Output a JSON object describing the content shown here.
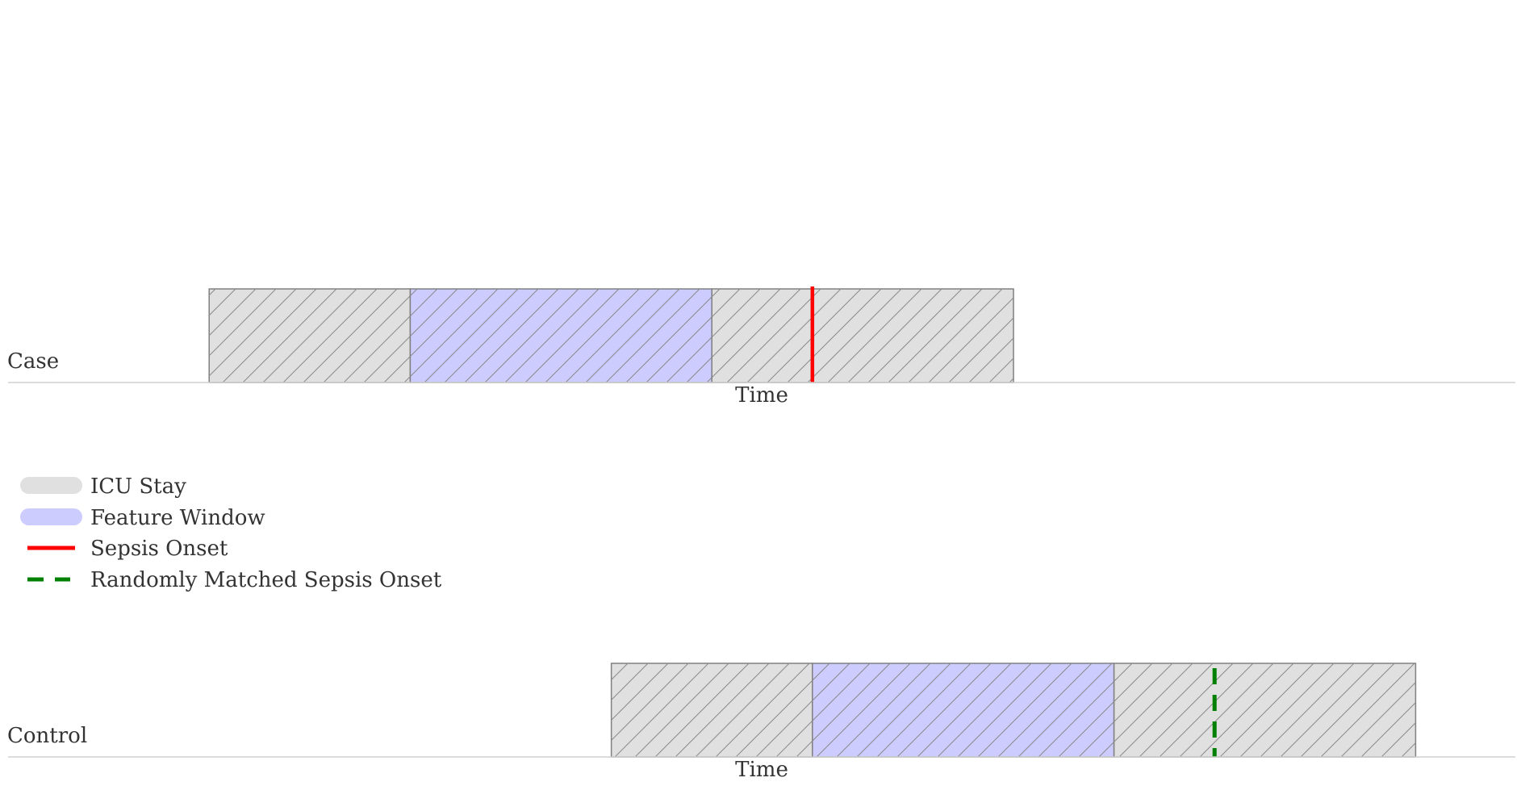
{
  "rows": [
    {
      "label": "Case",
      "axis_label": "Time",
      "icu_stay": [
        2,
        10
      ],
      "feature_window": [
        4,
        7
      ],
      "onset": 8,
      "onset_kind": "sepsis"
    },
    {
      "label": "Control",
      "axis_label": "Time",
      "icu_stay": [
        6,
        14
      ],
      "feature_window": [
        8,
        11
      ],
      "onset": 12,
      "onset_kind": "matched"
    }
  ],
  "time_range": [
    0,
    15
  ],
  "legend": [
    {
      "label": "ICU Stay",
      "kind": "patch",
      "color": "#e0e0e0"
    },
    {
      "label": "Feature Window",
      "kind": "patch",
      "color": "#ccccff"
    },
    {
      "label": "Sepsis Onset",
      "kind": "solid-line",
      "color": "#ff0000"
    },
    {
      "label": "Randomly Matched Sepsis Onset",
      "kind": "dashed-line",
      "color": "#008000"
    }
  ],
  "colors": {
    "icu_stay": "#e0e0e0",
    "feature_window": "#ccccff",
    "sepsis_onset": "#ff0000",
    "matched_onset": "#008000",
    "hatch": "#8a8a8a",
    "box_edge": "#808080",
    "axis": "#d0d0d0"
  }
}
